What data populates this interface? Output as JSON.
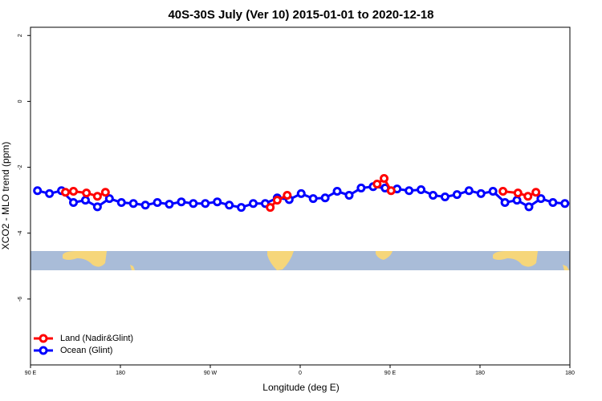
{
  "chart_data": {
    "type": "line",
    "title": "40S-30S July (Ver 10)   2015-01-01 to 2020-12-18",
    "x_label": "Longitude (deg E)",
    "y_label": "XCO2 - MLO trend (ppm)",
    "xlim": [
      90,
      630
    ],
    "ylim": [
      -8,
      2.25
    ],
    "xticks": [
      {
        "value": 90,
        "label": "90 E"
      },
      180,
      {
        "value": 270,
        "label": "90 W"
      },
      {
        "value": 360,
        "label": "0"
      },
      {
        "value": 450,
        "label": "90 E"
      },
      {
        "value": 540,
        "label": "180"
      },
      {
        "value": 630,
        "label": "180"
      }
    ],
    "yticks": [
      2,
      0,
      -2,
      -4,
      -6
    ],
    "legend": "bottom-left",
    "series": [
      {
        "name": "Land (Nadir&Glint)",
        "color": "#ff0000",
        "x": [
          125,
          133,
          146,
          157,
          165,
          null,
          330,
          337,
          347,
          null,
          437,
          444,
          451,
          null,
          563,
          578,
          588,
          596
        ],
        "values": [
          -2.76,
          -2.73,
          -2.78,
          -2.88,
          -2.76,
          null,
          -3.22,
          -3.0,
          -2.85,
          null,
          -2.51,
          -2.34,
          -2.71,
          null,
          -2.73,
          -2.78,
          -2.88,
          -2.76
        ]
      },
      {
        "name": "Ocean (Glint)",
        "color": "#0000ff",
        "x": [
          97,
          109,
          121,
          133,
          145,
          157,
          169,
          181,
          193,
          205,
          217,
          229,
          241,
          253,
          265,
          277,
          289,
          301,
          313,
          325,
          337,
          349,
          361,
          373,
          385,
          397,
          409,
          421,
          433,
          445,
          457,
          469,
          481,
          493,
          505,
          517,
          529,
          541,
          553,
          565,
          577,
          589,
          601,
          613,
          625
        ],
        "values": [
          -2.71,
          -2.8,
          -2.71,
          -3.07,
          -3.0,
          -3.2,
          -2.95,
          -3.07,
          -3.1,
          -3.15,
          -3.07,
          -3.12,
          -3.05,
          -3.1,
          -3.1,
          -3.05,
          -3.15,
          -3.22,
          -3.1,
          -3.1,
          -2.93,
          -2.98,
          -2.8,
          -2.95,
          -2.93,
          -2.73,
          -2.85,
          -2.63,
          -2.59,
          -2.63,
          -2.66,
          -2.71,
          -2.68,
          -2.85,
          -2.9,
          -2.83,
          -2.71,
          -2.8,
          -2.73,
          -3.07,
          -3.0,
          -3.2,
          -2.95,
          -3.07,
          -3.1
        ]
      }
    ]
  }
}
